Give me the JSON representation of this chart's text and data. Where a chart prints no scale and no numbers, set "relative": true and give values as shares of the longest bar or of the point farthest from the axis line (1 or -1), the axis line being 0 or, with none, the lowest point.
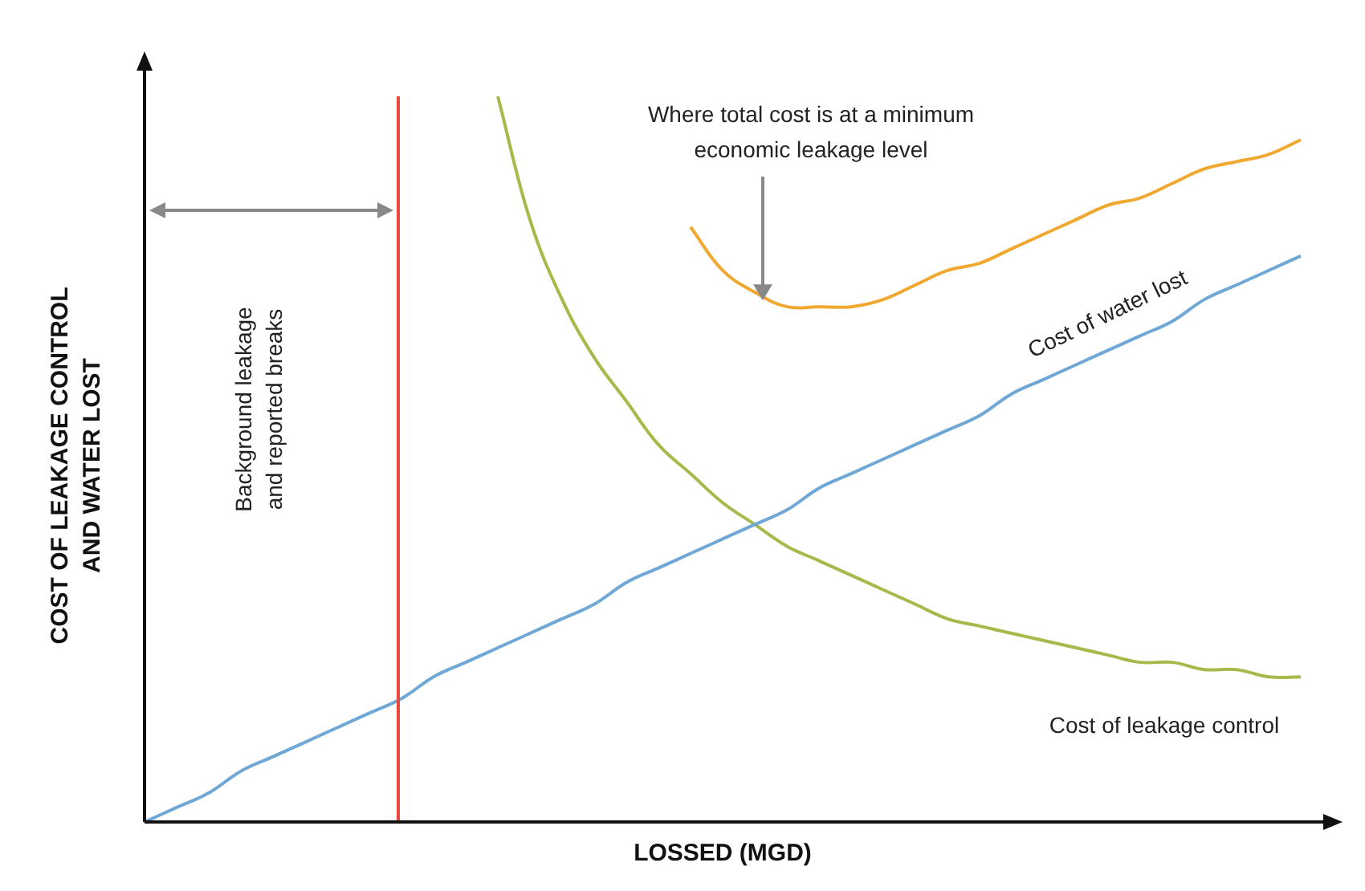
{
  "chart_data": {
    "type": "line",
    "relative": true,
    "legend": false,
    "xlabel": "LOSSED (MGD)",
    "ylabel": "COST OF LEAKAGE CONTROL\nAND WATER LOST",
    "categories": [
      null,
      null,
      null,
      null,
      null,
      null,
      null,
      null,
      null,
      null,
      null,
      null,
      null,
      null,
      null,
      null,
      null,
      null,
      null,
      null,
      null,
      null,
      null,
      null,
      null,
      null,
      null,
      null,
      null,
      null,
      null,
      null,
      null,
      null,
      null,
      null,
      null
    ],
    "series": [
      {
        "name": "Cost of water lost",
        "color": "#6fa8d6",
        "values": [
          0,
          0.02,
          0.04,
          0.07,
          0.09,
          0.11,
          0.13,
          0.15,
          0.17,
          0.2,
          0.22,
          0.24,
          0.26,
          0.28,
          0.3,
          0.33,
          0.35,
          0.37,
          0.39,
          0.41,
          0.43,
          0.46,
          0.48,
          0.5,
          0.52,
          0.54,
          0.56,
          0.59,
          0.61,
          0.63,
          0.65,
          0.67,
          0.69,
          0.72,
          0.74,
          0.76,
          0.78
        ]
      },
      {
        "name": "Cost of leakage control",
        "color": "#a8b84a",
        "values": [
          null,
          null,
          null,
          null,
          null,
          null,
          null,
          null,
          null,
          null,
          null,
          1.0,
          0.83,
          0.72,
          0.64,
          0.58,
          0.52,
          0.48,
          0.44,
          0.41,
          0.38,
          0.36,
          0.34,
          0.32,
          0.3,
          0.28,
          0.27,
          0.26,
          0.25,
          0.24,
          0.23,
          0.22,
          0.22,
          0.21,
          0.21,
          0.2,
          0.2
        ]
      },
      {
        "color": "#f0a830",
        "values": [
          null,
          null,
          null,
          null,
          null,
          null,
          null,
          null,
          null,
          null,
          null,
          null,
          null,
          null,
          null,
          null,
          null,
          0.82,
          0.76,
          0.73,
          0.71,
          0.71,
          0.71,
          0.72,
          0.74,
          0.76,
          0.77,
          0.79,
          0.81,
          0.83,
          0.85,
          0.86,
          0.88,
          0.9,
          0.91,
          0.92,
          0.94
        ]
      }
    ],
    "annotations": [
      "Where total cost is at a minimum\neconomic leakage level",
      "Background leakage\nand reported breaks"
    ]
  }
}
